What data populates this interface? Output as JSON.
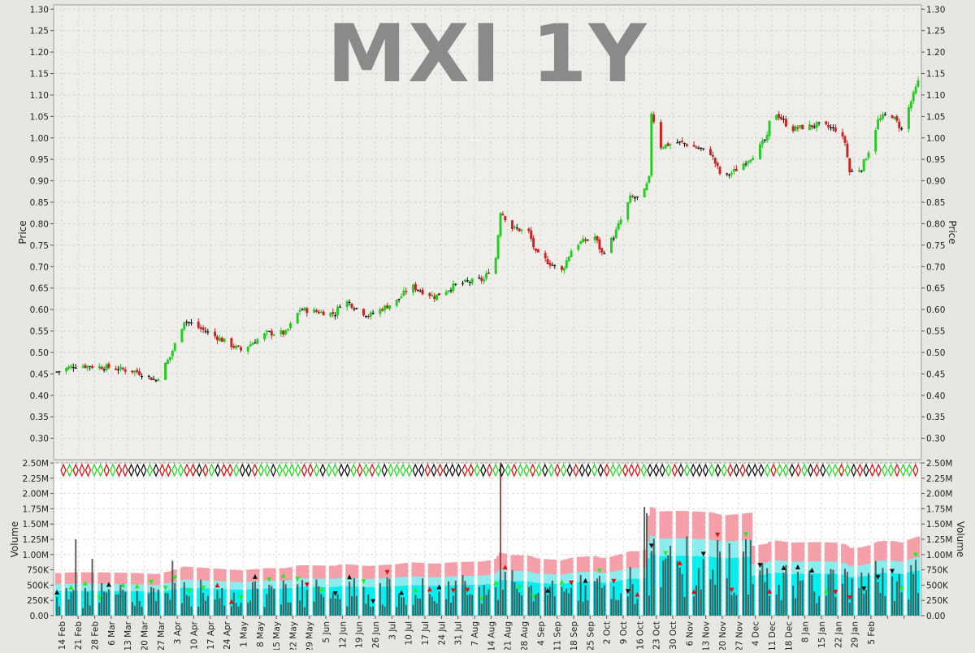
{
  "chart_data": [
    {
      "type": "candlestick",
      "title": "MXI 1Y",
      "ylabel": "Price",
      "ylim": [
        0.25,
        1.31
      ],
      "yticks": [
        "0.30",
        "0.35",
        "0.40",
        "0.45",
        "0.50",
        "0.55",
        "0.60",
        "0.65",
        "0.70",
        "0.75",
        "0.80",
        "0.85",
        "0.90",
        "0.95",
        "1.00",
        "1.05",
        "1.10",
        "1.15",
        "1.20",
        "1.25",
        "1.30"
      ],
      "grid": true,
      "colors": {
        "up": "#22cc22",
        "down": "#cc2222",
        "flat": "#111111",
        "title": "#8a8a8a",
        "plot_bg": "#efeeea"
      },
      "price_anchors": [
        {
          "date": "2015-02-12",
          "price": 0.455
        },
        {
          "date": "2015-02-20",
          "price": 0.47
        },
        {
          "date": "2015-03-06",
          "price": 0.465
        },
        {
          "date": "2015-03-18",
          "price": 0.455
        },
        {
          "date": "2015-03-26",
          "price": 0.435
        },
        {
          "date": "2015-04-01",
          "price": 0.49
        },
        {
          "date": "2015-04-07",
          "price": 0.575
        },
        {
          "date": "2015-04-21",
          "price": 0.535
        },
        {
          "date": "2015-05-01",
          "price": 0.505
        },
        {
          "date": "2015-05-12",
          "price": 0.545
        },
        {
          "date": "2015-05-20",
          "price": 0.545
        },
        {
          "date": "2015-05-26",
          "price": 0.6
        },
        {
          "date": "2015-06-10",
          "price": 0.59
        },
        {
          "date": "2015-06-13",
          "price": 0.625
        },
        {
          "date": "2015-06-24",
          "price": 0.585
        },
        {
          "date": "2015-07-06",
          "price": 0.62
        },
        {
          "date": "2015-07-12",
          "price": 0.655
        },
        {
          "date": "2015-07-22",
          "price": 0.63
        },
        {
          "date": "2015-08-01",
          "price": 0.66
        },
        {
          "date": "2015-08-12",
          "price": 0.67
        },
        {
          "date": "2015-08-17",
          "price": 0.72
        },
        {
          "date": "2015-08-19",
          "price": 0.83
        },
        {
          "date": "2015-08-24",
          "price": 0.79
        },
        {
          "date": "2015-08-31",
          "price": 0.78
        },
        {
          "date": "2015-09-03",
          "price": 0.73
        },
        {
          "date": "2015-09-14",
          "price": 0.69
        },
        {
          "date": "2015-09-19",
          "price": 0.75
        },
        {
          "date": "2015-09-28",
          "price": 0.77
        },
        {
          "date": "2015-10-01",
          "price": 0.73
        },
        {
          "date": "2015-10-06",
          "price": 0.77
        },
        {
          "date": "2015-10-13",
          "price": 0.86
        },
        {
          "date": "2015-10-18",
          "price": 0.86
        },
        {
          "date": "2015-10-21",
          "price": 0.905
        },
        {
          "date": "2015-10-22",
          "price": 1.06
        },
        {
          "date": "2015-10-26",
          "price": 0.98
        },
        {
          "date": "2015-11-02",
          "price": 0.99
        },
        {
          "date": "2015-11-06",
          "price": 0.985
        },
        {
          "date": "2015-11-16",
          "price": 0.965
        },
        {
          "date": "2015-11-21",
          "price": 0.905
        },
        {
          "date": "2015-11-28",
          "price": 0.93
        },
        {
          "date": "2015-12-04",
          "price": 0.96
        },
        {
          "date": "2015-12-10",
          "price": 1.0
        },
        {
          "date": "2015-12-12",
          "price": 1.07
        },
        {
          "date": "2015-12-20",
          "price": 1.02
        },
        {
          "date": "2015-12-25",
          "price": 1.025
        },
        {
          "date": "2016-01-01",
          "price": 1.03
        },
        {
          "date": "2016-01-08",
          "price": 1.02
        },
        {
          "date": "2016-01-12",
          "price": 0.99
        },
        {
          "date": "2016-01-14",
          "price": 0.92
        },
        {
          "date": "2016-01-19",
          "price": 0.93
        },
        {
          "date": "2016-01-22",
          "price": 0.97
        },
        {
          "date": "2016-01-26",
          "price": 1.04
        },
        {
          "date": "2016-01-31",
          "price": 1.06
        },
        {
          "date": "2016-02-05",
          "price": 1.02
        },
        {
          "date": "2016-02-08",
          "price": 1.07
        },
        {
          "date": "2016-02-12",
          "price": 1.13
        }
      ],
      "x_tick_labels": [
        "14 Feb",
        "21 Feb",
        "28 Feb",
        "6 Mar",
        "13 Mar",
        "20 Mar",
        "27 Mar",
        "3 Apr",
        "10 Apr",
        "17 Apr",
        "24 Apr",
        "1 May",
        "8 May",
        "15 May",
        "22 May",
        "29 May",
        "5 Jun",
        "12 Jun",
        "19 Jun",
        "26 Jun",
        "3 Jul",
        "10 Jul",
        "17 Jul",
        "24 Jul",
        "31 Jul",
        "7 Aug",
        "14 Aug",
        "21 Aug",
        "28 Aug",
        "4 Sep",
        "11 Sep",
        "18 Sep",
        "25 Sep",
        "2 Oct",
        "9 Oct",
        "16 Oct",
        "23 Oct",
        "30 Oct",
        "6 Nov",
        "13 Nov",
        "20 Nov",
        "27 Nov",
        "4 Dec",
        "11 Dec",
        "18 Dec",
        "8 Jan",
        "15 Jan",
        "22 Jan",
        "29 Jan",
        "5 Feb"
      ]
    },
    {
      "type": "bar",
      "ylabel": "Volume",
      "ylim": [
        0,
        2500000
      ],
      "yticks": [
        "0.00",
        "250K",
        "500K",
        "750K",
        "1.00M",
        "1.25M",
        "1.50M",
        "1.75M",
        "2.00M",
        "2.25M",
        "2.50M"
      ],
      "colors": {
        "bar": "#444444",
        "band_outer": "#f5a0a8",
        "band_mid": "#88eef0",
        "band_inner": "#00f0f0"
      },
      "volume_spikes": [
        {
          "date": "2015-02-20",
          "volume": 1250000
        },
        {
          "date": "2015-02-27",
          "volume": 930000
        },
        {
          "date": "2015-04-02",
          "volume": 900000
        },
        {
          "date": "2015-05-24",
          "volume": 1000000
        },
        {
          "date": "2015-08-19",
          "volume": 2500000
        },
        {
          "date": "2015-10-19",
          "volume": 1780000
        },
        {
          "date": "2015-10-20",
          "volume": 1680000
        },
        {
          "date": "2015-11-19",
          "volume": 1240000
        }
      ]
    }
  ]
}
